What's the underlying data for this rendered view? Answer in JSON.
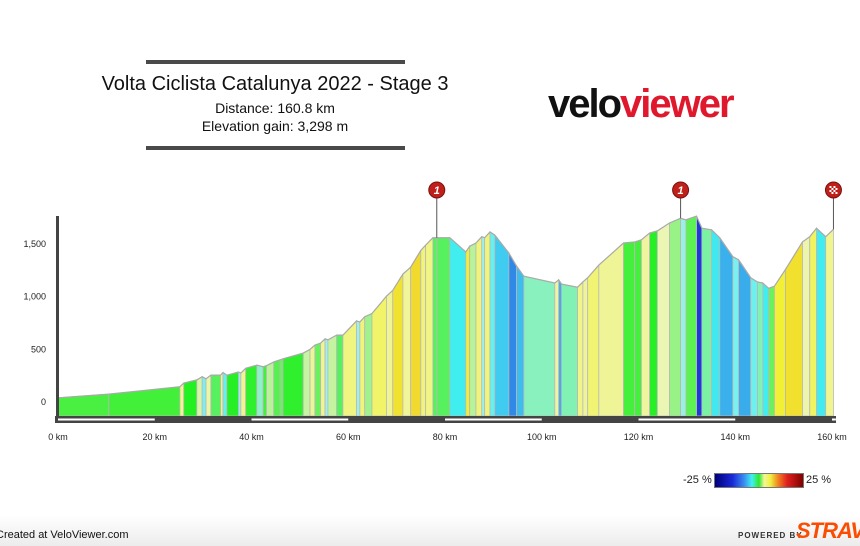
{
  "header": {
    "title": "Volta Ciclista Catalunya 2022 - Stage 3",
    "distance": "Distance: 160.8 km",
    "elevation_gain": "Elevation gain: 3,298 m"
  },
  "logo": {
    "part1": "velo",
    "part2": "viewer"
  },
  "footer": {
    "created": "Created at VeloViewer.com",
    "powered_by": "POWERED BY",
    "strava": "STRAVA"
  },
  "legend": {
    "min_label": "-25 %",
    "max_label": "25 %"
  },
  "colors": {
    "brand_red": "#e0182d",
    "strava": "#fc4c02",
    "marker": "#c0201a",
    "axis": "#444444"
  },
  "chart_data": {
    "type": "area",
    "xlabel": "",
    "ylabel": "",
    "xlim": [
      0,
      160.8
    ],
    "ylim": [
      -140,
      1800
    ],
    "x_ticks": [
      "0 km",
      "20 km",
      "40 km",
      "60 km",
      "80 km",
      "100 km",
      "120 km",
      "140 km",
      "160 km"
    ],
    "x_tick_values": [
      0,
      20,
      40,
      60,
      80,
      100,
      120,
      140,
      160
    ],
    "y_ticks": [
      "0",
      "500",
      "1,000",
      "1,500"
    ],
    "y_tick_values": [
      0,
      500,
      1000,
      1500
    ],
    "color_by": "gradient (%)",
    "markers": [
      {
        "km": 78.3,
        "label": "1",
        "type": "climb-cat-1"
      },
      {
        "km": 128.7,
        "label": "1",
        "type": "climb-cat-1"
      },
      {
        "km": 160.3,
        "label": "",
        "type": "finish"
      }
    ],
    "profile_km": [
      0,
      10.5,
      25.2,
      26,
      28.7,
      29.8,
      30.6,
      31.6,
      33.6,
      34.1,
      34.9,
      37.3,
      37.8,
      38.8,
      41.1,
      42.4,
      43.1,
      44.6,
      45.9,
      46.5,
      50.7,
      52.1,
      53.1,
      54.3,
      55.2,
      55.8,
      57.6,
      58.9,
      61.7,
      62.4,
      63.4,
      64.9,
      67.9,
      69.2,
      71.3,
      72.9,
      75,
      76,
      77.5,
      78.3,
      81,
      84.3,
      85.1,
      86.4,
      87.6,
      88.2,
      89.3,
      90.3,
      93.2,
      94.8,
      96.3,
      102.7,
      103.5,
      104.1,
      107.4,
      108.5,
      109.5,
      111.8,
      116.9,
      119.2,
      120.6,
      122.3,
      123.9,
      126.4,
      128.7,
      129.8,
      132,
      133.1,
      135.1,
      136.8,
      139.5,
      140.7,
      143.2,
      144.6,
      145.7,
      146.9,
      148.1,
      150.4,
      153.9,
      155.4,
      156.8,
      158.7,
      160.3
    ],
    "profile_elev_m": [
      40,
      75,
      145,
      180,
      210,
      240,
      220,
      255,
      255,
      280,
      255,
      285,
      275,
      320,
      350,
      335,
      345,
      380,
      400,
      410,
      465,
      500,
      540,
      560,
      600,
      590,
      635,
      635,
      770,
      760,
      810,
      840,
      1005,
      1060,
      1215,
      1280,
      1440,
      1490,
      1560,
      1560,
      1560,
      1425,
      1480,
      1510,
      1570,
      1560,
      1615,
      1585,
      1415,
      1290,
      1195,
      1130,
      1160,
      1120,
      1090,
      1140,
      1180,
      1300,
      1510,
      1520,
      1540,
      1605,
      1625,
      1700,
      1745,
      1730,
      1765,
      1650,
      1635,
      1560,
      1380,
      1350,
      1180,
      1140,
      1130,
      1080,
      1100,
      1260,
      1520,
      1570,
      1650,
      1570,
      1640
    ]
  }
}
